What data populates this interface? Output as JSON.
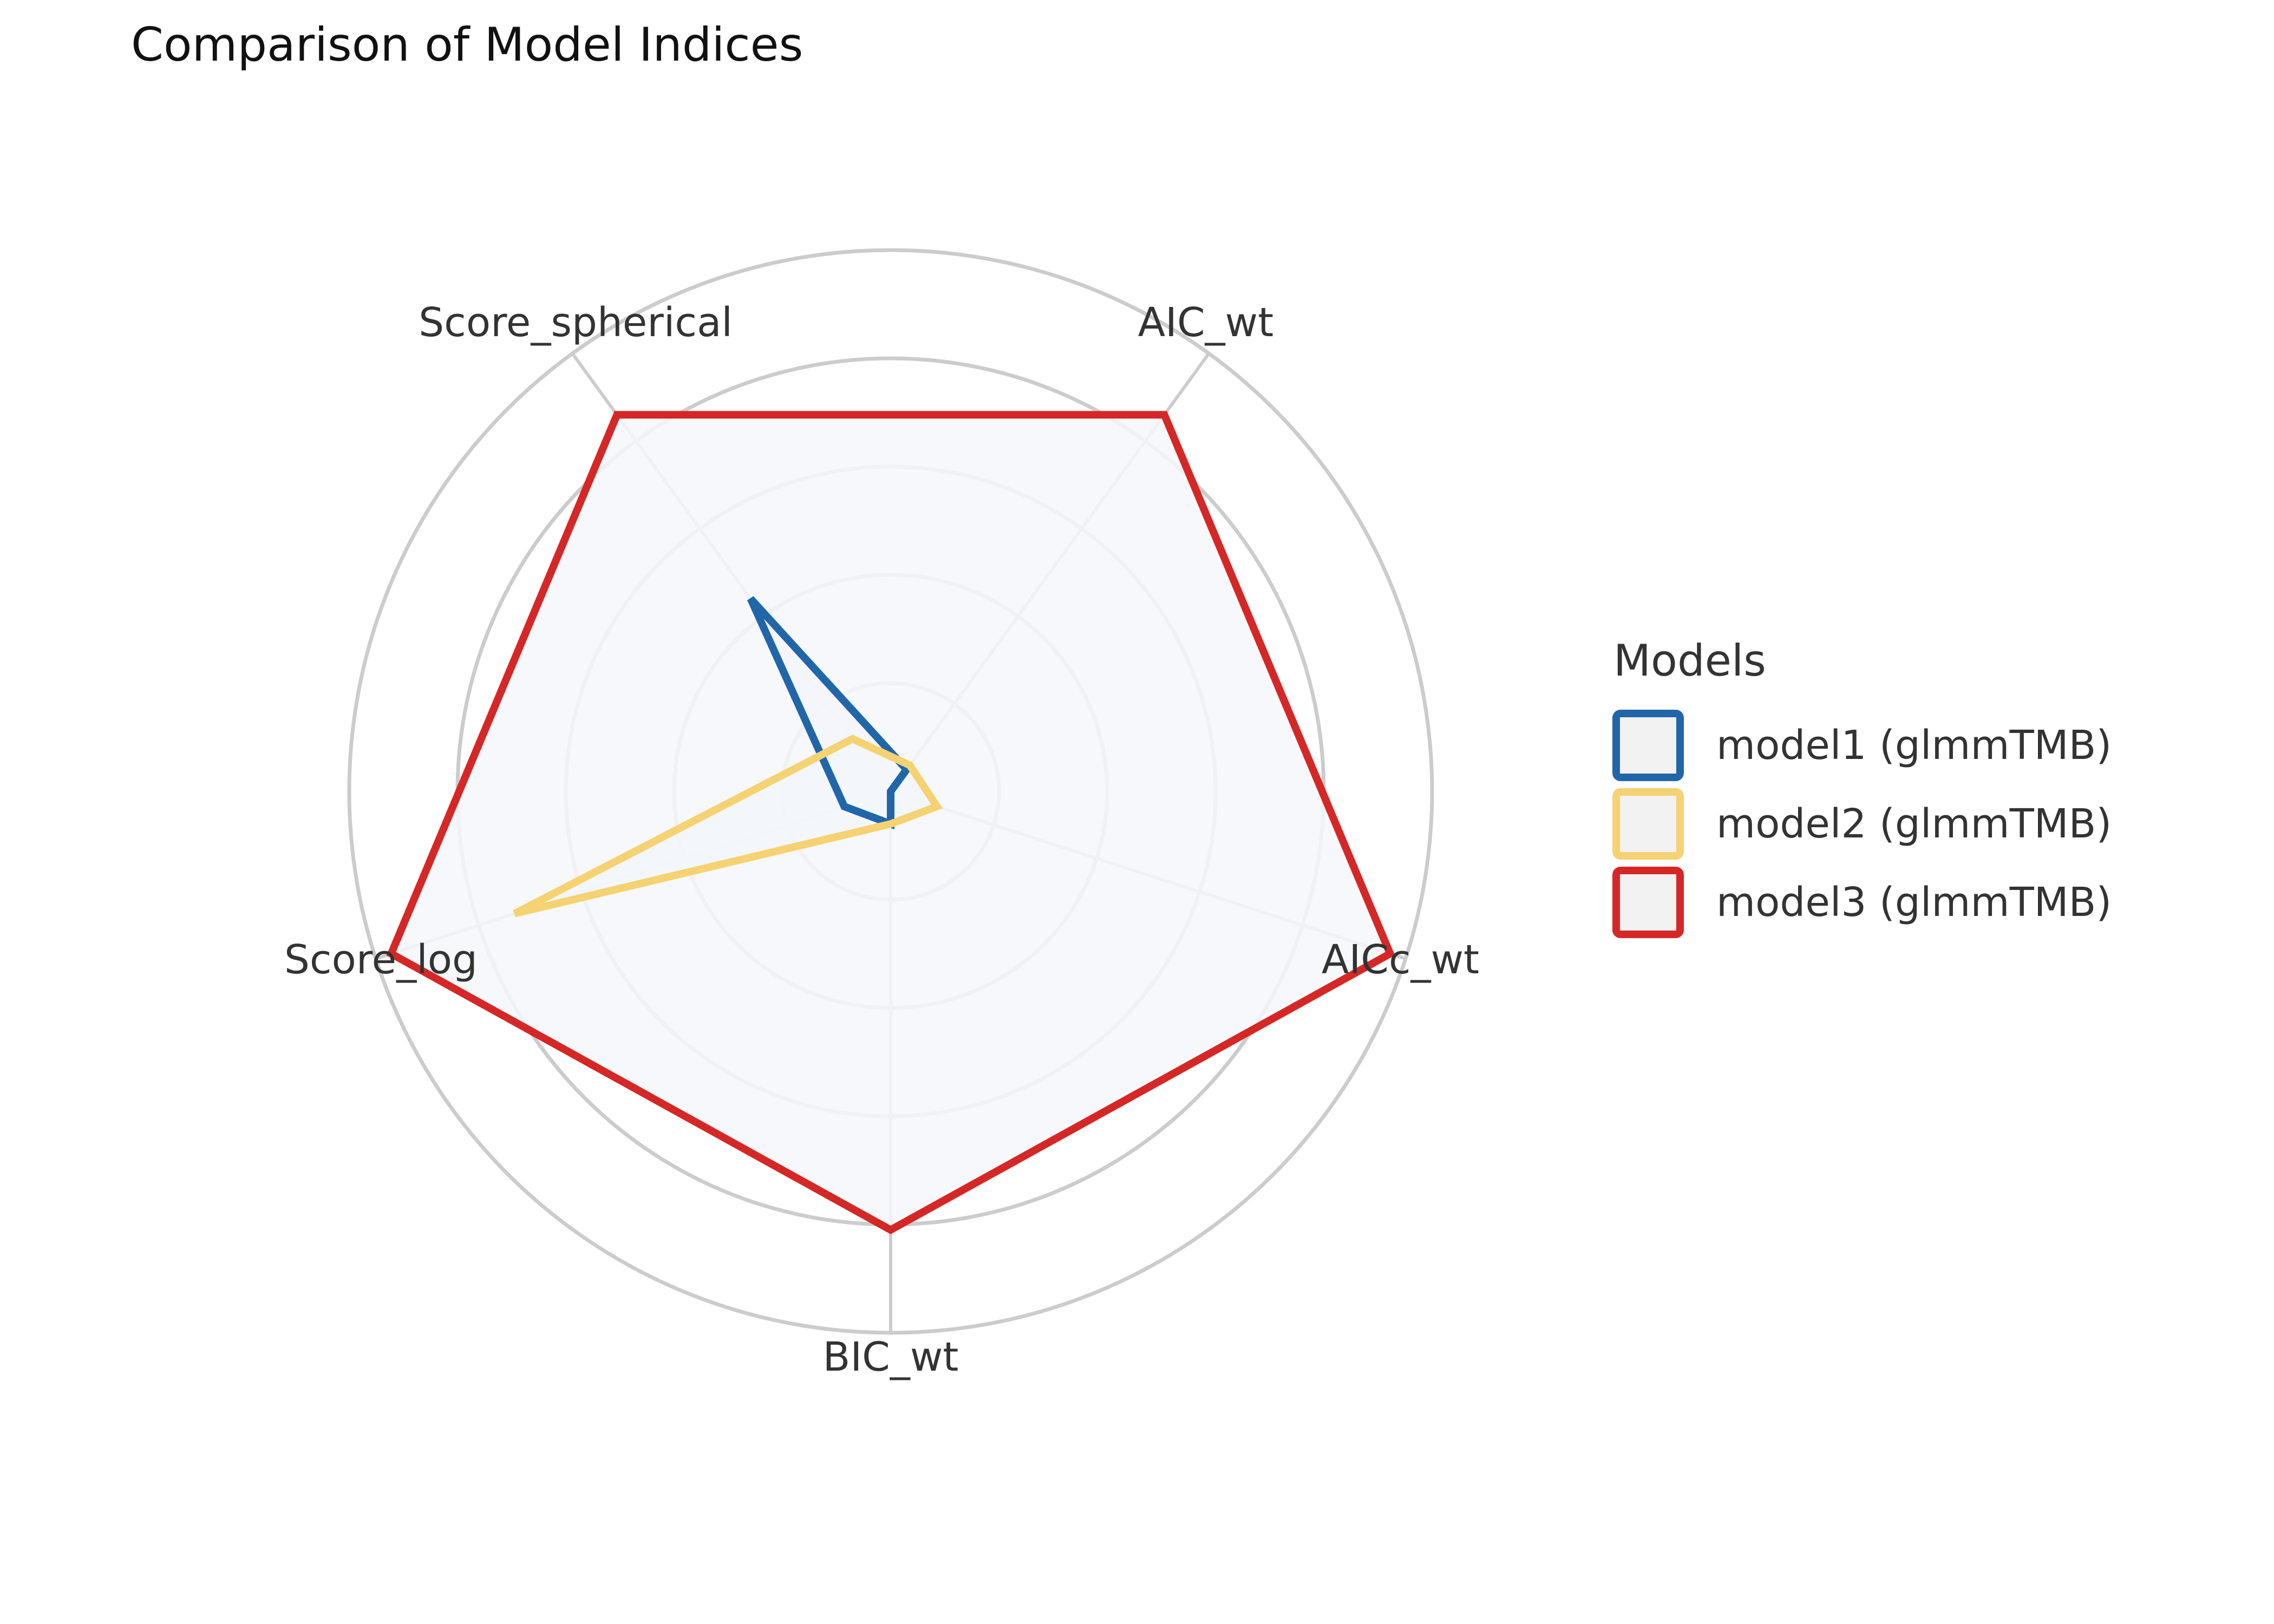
{
  "chart_data": {
    "type": "radar",
    "title": "Comparison of Model Indices",
    "axes": [
      "AIC_wt",
      "AICc_wt",
      "BIC_wt",
      "Score_log",
      "Score_spherical"
    ],
    "rlim": [
      0,
      1
    ],
    "grid_levels": [
      0.2,
      0.4,
      0.6,
      0.8,
      1.0
    ],
    "grid": true,
    "legend_title": "Models",
    "legend_position": "right",
    "series": [
      {
        "name": "model1 (glmmTMB)",
        "color": "#2166a8",
        "fill": "#f2f0f5",
        "values": [
          0.05,
          0.0,
          0.06,
          0.09,
          0.44
        ]
      },
      {
        "name": "model2 (glmmTMB)",
        "color": "#f5d272",
        "fill": "#e9f5f3",
        "values": [
          0.06,
          0.09,
          0.06,
          0.73,
          0.12
        ]
      },
      {
        "name": "model3 (glmmTMB)",
        "color": "#d62727",
        "fill": "#f4f7fb",
        "values": [
          0.86,
          0.97,
          0.81,
          0.97,
          0.86
        ]
      }
    ]
  }
}
